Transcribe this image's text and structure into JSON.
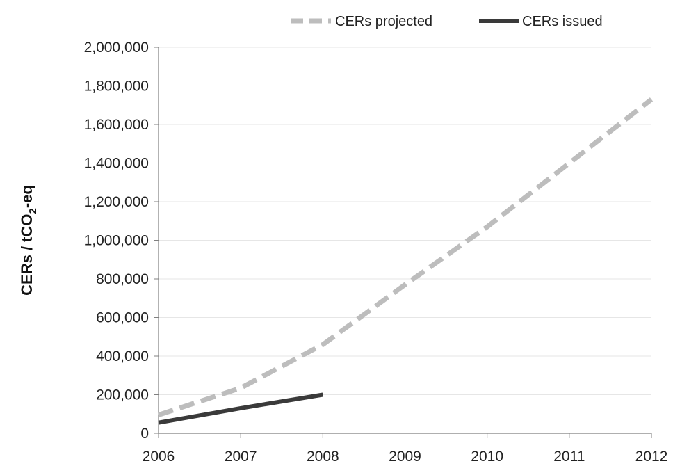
{
  "chart_data": {
    "type": "line",
    "title": "",
    "xlabel": "",
    "ylabel": "CERs / tCO2-eq",
    "ylabel_parts": {
      "main": "CERs / tCO",
      "subscript": "2",
      "suffix": "-eq"
    },
    "xlim": [
      2006,
      2012
    ],
    "ylim": [
      0,
      2000000
    ],
    "y_ticks": [
      0,
      200000,
      400000,
      600000,
      800000,
      1000000,
      1200000,
      1400000,
      1600000,
      1800000,
      2000000
    ],
    "y_tick_labels": [
      "0",
      "200,000",
      "400,000",
      "600,000",
      "800,000",
      "1,000,000",
      "1,200,000",
      "1,400,000",
      "1,600,000",
      "1,800,000",
      "2,000,000"
    ],
    "x_ticks": [
      2006,
      2007,
      2008,
      2009,
      2010,
      2011,
      2012
    ],
    "x_tick_labels": [
      "2006",
      "2007",
      "2008",
      "2009",
      "2010",
      "2011",
      "2012"
    ],
    "grid": "horizontal",
    "legend": "top",
    "series": [
      {
        "name": "CERs projected",
        "style": "dashed",
        "color": "#bdbdbd",
        "x": [
          2006,
          2007,
          2008,
          2009,
          2010,
          2011,
          2012
        ],
        "y": [
          95000,
          235000,
          460000,
          770000,
          1070000,
          1400000,
          1730000
        ]
      },
      {
        "name": "CERs issued",
        "style": "solid",
        "color": "#3a3a3a",
        "x": [
          2006,
          2007,
          2008
        ],
        "y": [
          55000,
          130000,
          200000
        ]
      }
    ]
  }
}
